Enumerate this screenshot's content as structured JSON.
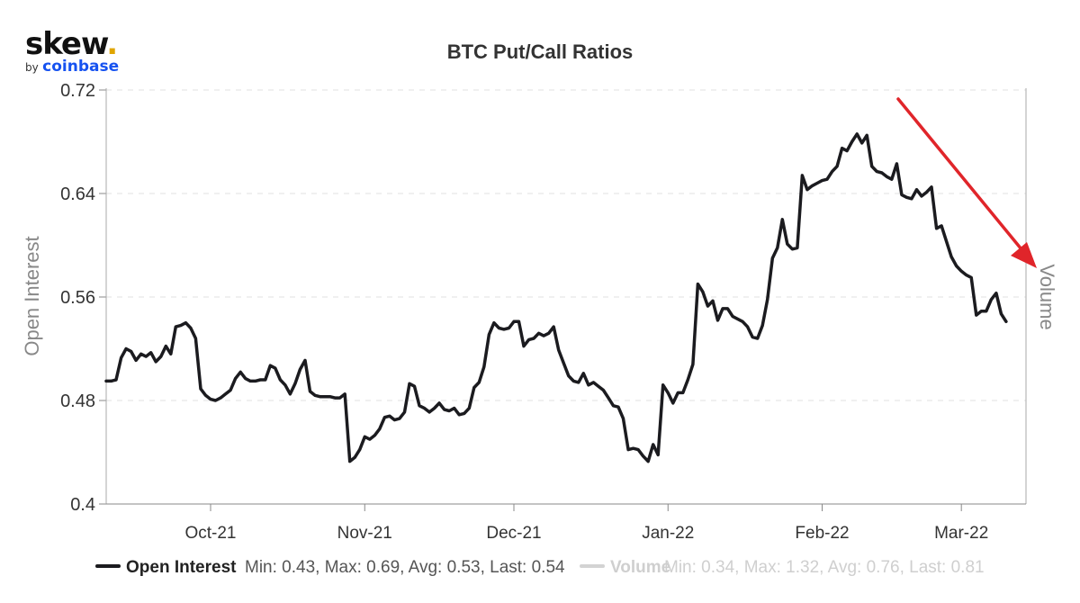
{
  "brand": {
    "name": "skew",
    "dot": ".",
    "by": "by",
    "parent": "coinbase"
  },
  "chart_data": {
    "type": "line",
    "title": "BTC Put/Call Ratios",
    "ylabel": "Open Interest",
    "y2label": "Volume",
    "ylim": [
      0.4,
      0.72
    ],
    "yticks": [
      0.4,
      0.48,
      0.56,
      0.64,
      0.72
    ],
    "ytick_labels": [
      "0.4",
      "0.48",
      "0.56",
      "0.64",
      "0.72"
    ],
    "xlim": [
      "2021-09-10",
      "2022-03-14"
    ],
    "xticks": [
      "2021-10-01",
      "2021-11-01",
      "2021-12-01",
      "2022-01-01",
      "2022-02-01",
      "2022-03-01"
    ],
    "xtick_labels": [
      "Oct-21",
      "Nov-21",
      "Dec-21",
      "Jan-22",
      "Feb-22",
      "Mar-22"
    ],
    "grid": "horizontal dashed",
    "legend_position": "bottom",
    "annotation": "red arrow pointing down-right toward the Volume axis",
    "colors": {
      "open_interest": "#1b1b1f",
      "volume": "#d3d3d3",
      "arrow": "#e0252a",
      "grid": "#e0e0e0"
    },
    "legend": [
      {
        "name": "Open Interest",
        "stats": "Min: 0.43, Max: 0.69, Avg: 0.53, Last: 0.54",
        "color": "#1b1b1f",
        "active": true
      },
      {
        "name": "Volume",
        "stats": "Min: 0.34, Max: 1.32, Avg: 0.76, Last: 0.81",
        "color": "#d3d3d3",
        "active": false
      }
    ],
    "series": [
      {
        "name": "Open Interest",
        "points": [
          [
            "2021-09-10",
            0.495
          ],
          [
            "2021-09-11",
            0.495
          ],
          [
            "2021-09-12",
            0.496
          ],
          [
            "2021-09-13",
            0.513
          ],
          [
            "2021-09-14",
            0.52
          ],
          [
            "2021-09-15",
            0.518
          ],
          [
            "2021-09-16",
            0.511
          ],
          [
            "2021-09-17",
            0.516
          ],
          [
            "2021-09-18",
            0.514
          ],
          [
            "2021-09-19",
            0.517
          ],
          [
            "2021-09-20",
            0.51
          ],
          [
            "2021-09-21",
            0.514
          ],
          [
            "2021-09-22",
            0.522
          ],
          [
            "2021-09-23",
            0.516
          ],
          [
            "2021-09-24",
            0.537
          ],
          [
            "2021-09-25",
            0.538
          ],
          [
            "2021-09-26",
            0.54
          ],
          [
            "2021-09-27",
            0.536
          ],
          [
            "2021-09-28",
            0.528
          ],
          [
            "2021-09-29",
            0.489
          ],
          [
            "2021-09-30",
            0.484
          ],
          [
            "2021-10-01",
            0.481
          ],
          [
            "2021-10-02",
            0.48
          ],
          [
            "2021-10-03",
            0.482
          ],
          [
            "2021-10-04",
            0.485
          ],
          [
            "2021-10-05",
            0.488
          ],
          [
            "2021-10-06",
            0.497
          ],
          [
            "2021-10-07",
            0.502
          ],
          [
            "2021-10-08",
            0.497
          ],
          [
            "2021-10-09",
            0.495
          ],
          [
            "2021-10-10",
            0.495
          ],
          [
            "2021-10-11",
            0.496
          ],
          [
            "2021-10-12",
            0.496
          ],
          [
            "2021-10-13",
            0.507
          ],
          [
            "2021-10-14",
            0.505
          ],
          [
            "2021-10-15",
            0.496
          ],
          [
            "2021-10-16",
            0.492
          ],
          [
            "2021-10-17",
            0.485
          ],
          [
            "2021-10-18",
            0.493
          ],
          [
            "2021-10-19",
            0.504
          ],
          [
            "2021-10-20",
            0.511
          ],
          [
            "2021-10-21",
            0.487
          ],
          [
            "2021-10-22",
            0.484
          ],
          [
            "2021-10-23",
            0.483
          ],
          [
            "2021-10-24",
            0.483
          ],
          [
            "2021-10-25",
            0.483
          ],
          [
            "2021-10-26",
            0.482
          ],
          [
            "2021-10-27",
            0.482
          ],
          [
            "2021-10-28",
            0.485
          ],
          [
            "2021-10-29",
            0.433
          ],
          [
            "2021-10-30",
            0.436
          ],
          [
            "2021-10-31",
            0.442
          ],
          [
            "2021-11-01",
            0.452
          ],
          [
            "2021-11-02",
            0.45
          ],
          [
            "2021-11-03",
            0.453
          ],
          [
            "2021-11-04",
            0.458
          ],
          [
            "2021-11-05",
            0.467
          ],
          [
            "2021-11-06",
            0.468
          ],
          [
            "2021-11-07",
            0.465
          ],
          [
            "2021-11-08",
            0.466
          ],
          [
            "2021-11-09",
            0.471
          ],
          [
            "2021-11-10",
            0.493
          ],
          [
            "2021-11-11",
            0.491
          ],
          [
            "2021-11-12",
            0.476
          ],
          [
            "2021-11-13",
            0.474
          ],
          [
            "2021-11-14",
            0.471
          ],
          [
            "2021-11-15",
            0.474
          ],
          [
            "2021-11-16",
            0.478
          ],
          [
            "2021-11-17",
            0.473
          ],
          [
            "2021-11-18",
            0.472
          ],
          [
            "2021-11-19",
            0.474
          ],
          [
            "2021-11-20",
            0.469
          ],
          [
            "2021-11-21",
            0.47
          ],
          [
            "2021-11-22",
            0.474
          ],
          [
            "2021-11-23",
            0.49
          ],
          [
            "2021-11-24",
            0.494
          ],
          [
            "2021-11-25",
            0.506
          ],
          [
            "2021-11-26",
            0.531
          ],
          [
            "2021-11-27",
            0.54
          ],
          [
            "2021-11-28",
            0.536
          ],
          [
            "2021-11-29",
            0.535
          ],
          [
            "2021-11-30",
            0.536
          ],
          [
            "2021-12-01",
            0.541
          ],
          [
            "2021-12-02",
            0.541
          ],
          [
            "2021-12-03",
            0.522
          ],
          [
            "2021-12-04",
            0.527
          ],
          [
            "2021-12-05",
            0.528
          ],
          [
            "2021-12-06",
            0.532
          ],
          [
            "2021-12-07",
            0.53
          ],
          [
            "2021-12-08",
            0.532
          ],
          [
            "2021-12-09",
            0.537
          ],
          [
            "2021-12-10",
            0.519
          ],
          [
            "2021-12-11",
            0.509
          ],
          [
            "2021-12-12",
            0.499
          ],
          [
            "2021-12-13",
            0.495
          ],
          [
            "2021-12-14",
            0.494
          ],
          [
            "2021-12-15",
            0.501
          ],
          [
            "2021-12-16",
            0.492
          ],
          [
            "2021-12-17",
            0.494
          ],
          [
            "2021-12-18",
            0.491
          ],
          [
            "2021-12-19",
            0.488
          ],
          [
            "2021-12-20",
            0.482
          ],
          [
            "2021-12-21",
            0.476
          ],
          [
            "2021-12-22",
            0.475
          ],
          [
            "2021-12-23",
            0.466
          ],
          [
            "2021-12-24",
            0.442
          ],
          [
            "2021-12-25",
            0.443
          ],
          [
            "2021-12-26",
            0.442
          ],
          [
            "2021-12-27",
            0.437
          ],
          [
            "2021-12-28",
            0.433
          ],
          [
            "2021-12-29",
            0.446
          ],
          [
            "2021-12-30",
            0.438
          ],
          [
            "2021-12-31",
            0.492
          ],
          [
            "2022-01-01",
            0.486
          ],
          [
            "2022-01-02",
            0.478
          ],
          [
            "2022-01-03",
            0.486
          ],
          [
            "2022-01-04",
            0.486
          ],
          [
            "2022-01-05",
            0.496
          ],
          [
            "2022-01-06",
            0.508
          ],
          [
            "2022-01-07",
            0.57
          ],
          [
            "2022-01-08",
            0.564
          ],
          [
            "2022-01-09",
            0.553
          ],
          [
            "2022-01-10",
            0.557
          ],
          [
            "2022-01-11",
            0.542
          ],
          [
            "2022-01-12",
            0.551
          ],
          [
            "2022-01-13",
            0.551
          ],
          [
            "2022-01-14",
            0.545
          ],
          [
            "2022-01-15",
            0.543
          ],
          [
            "2022-01-16",
            0.541
          ],
          [
            "2022-01-17",
            0.537
          ],
          [
            "2022-01-18",
            0.529
          ],
          [
            "2022-01-19",
            0.528
          ],
          [
            "2022-01-20",
            0.538
          ],
          [
            "2022-01-21",
            0.558
          ],
          [
            "2022-01-22",
            0.59
          ],
          [
            "2022-01-23",
            0.598
          ],
          [
            "2022-01-24",
            0.62
          ],
          [
            "2022-01-25",
            0.601
          ],
          [
            "2022-01-26",
            0.597
          ],
          [
            "2022-01-27",
            0.598
          ],
          [
            "2022-01-28",
            0.654
          ],
          [
            "2022-01-29",
            0.643
          ],
          [
            "2022-01-30",
            0.646
          ],
          [
            "2022-01-31",
            0.648
          ],
          [
            "2022-02-01",
            0.65
          ],
          [
            "2022-02-02",
            0.651
          ],
          [
            "2022-02-03",
            0.657
          ],
          [
            "2022-02-04",
            0.661
          ],
          [
            "2022-02-05",
            0.675
          ],
          [
            "2022-02-06",
            0.673
          ],
          [
            "2022-02-07",
            0.68
          ],
          [
            "2022-02-08",
            0.686
          ],
          [
            "2022-02-09",
            0.679
          ],
          [
            "2022-02-10",
            0.685
          ],
          [
            "2022-02-11",
            0.661
          ],
          [
            "2022-02-12",
            0.657
          ],
          [
            "2022-02-13",
            0.656
          ],
          [
            "2022-02-14",
            0.653
          ],
          [
            "2022-02-15",
            0.651
          ],
          [
            "2022-02-16",
            0.663
          ],
          [
            "2022-02-17",
            0.639
          ],
          [
            "2022-02-18",
            0.637
          ],
          [
            "2022-02-19",
            0.636
          ],
          [
            "2022-02-20",
            0.643
          ],
          [
            "2022-02-21",
            0.638
          ],
          [
            "2022-02-22",
            0.641
          ],
          [
            "2022-02-23",
            0.645
          ],
          [
            "2022-02-24",
            0.613
          ],
          [
            "2022-02-25",
            0.615
          ],
          [
            "2022-02-26",
            0.603
          ],
          [
            "2022-02-27",
            0.591
          ],
          [
            "2022-02-28",
            0.584
          ],
          [
            "2022-03-01",
            0.58
          ],
          [
            "2022-03-02",
            0.577
          ],
          [
            "2022-03-03",
            0.575
          ],
          [
            "2022-03-04",
            0.546
          ],
          [
            "2022-03-05",
            0.549
          ],
          [
            "2022-03-06",
            0.549
          ],
          [
            "2022-03-07",
            0.558
          ],
          [
            "2022-03-08",
            0.563
          ],
          [
            "2022-03-09",
            0.547
          ],
          [
            "2022-03-10",
            0.541
          ]
        ]
      }
    ]
  }
}
